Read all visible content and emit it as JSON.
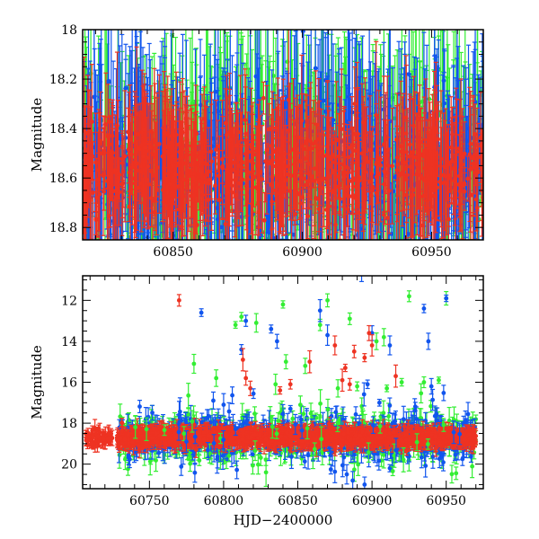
{
  "chart_data": [
    {
      "type": "scatter",
      "panel": "top",
      "xlabel": "",
      "ylabel": "Magnitude",
      "xlim": [
        60815,
        60970
      ],
      "ylim": [
        18.85,
        18.0
      ],
      "y_inverted": true,
      "xticks": [
        60850,
        60900,
        60950
      ],
      "yticks": [
        18,
        18.2,
        18.4,
        18.6,
        18.8
      ],
      "xtick_labels": [
        "60850",
        "60900",
        "60950"
      ],
      "ytick_labels": [
        "18",
        "18.2",
        "18.4",
        "18.6",
        "18.8"
      ],
      "series": [
        {
          "name": "green",
          "color": "#33ee33",
          "x_range": [
            60815,
            60970
          ],
          "y_center": 18.55,
          "y_spread": 0.3,
          "error_bars": true
        },
        {
          "name": "blue",
          "color": "#1155ee",
          "x_range": [
            60815,
            60970
          ],
          "y_center": 18.55,
          "y_spread": 0.3,
          "error_bars": true
        },
        {
          "name": "red",
          "color": "#ee3322",
          "x_range": [
            60815,
            60970
          ],
          "y_center": 18.55,
          "y_spread": 0.2,
          "error_bars": true
        }
      ]
    },
    {
      "type": "scatter",
      "panel": "bottom",
      "xlabel": "HJD−2400000",
      "ylabel": "Magnitude",
      "xlim": [
        60705,
        60975
      ],
      "ylim": [
        21.2,
        10.8
      ],
      "y_inverted": true,
      "xticks": [
        60750,
        60800,
        60850,
        60900,
        60950
      ],
      "yticks": [
        12,
        14,
        16,
        18,
        20
      ],
      "xtick_labels": [
        "60750",
        "60800",
        "60850",
        "60900",
        "60950"
      ],
      "ytick_labels": [
        "12",
        "14",
        "16",
        "18",
        "20"
      ],
      "series": [
        {
          "name": "red",
          "color": "#ee3322",
          "baseline": {
            "x_range": [
              60728,
              60970
            ],
            "y": 18.7,
            "spread": 0.4
          },
          "early": {
            "x_range": [
              60707,
              60725
            ],
            "y": 18.7,
            "spread": 0.35
          },
          "outliers": [
            [
              60770,
              12.0
            ],
            [
              60813,
              14.9
            ],
            [
              60815,
              15.8
            ],
            [
              60818,
              16.3
            ],
            [
              60838,
              16.4
            ],
            [
              60845,
              16.1
            ],
            [
              60858,
              15.0
            ],
            [
              60875,
              14.2
            ],
            [
              60880,
              15.9
            ],
            [
              60882,
              15.3
            ],
            [
              60885,
              16.1
            ],
            [
              60888,
              14.5
            ],
            [
              60895,
              14.8
            ],
            [
              60898,
              13.6
            ],
            [
              60900,
              14.2
            ],
            [
              60916,
              15.7
            ]
          ]
        },
        {
          "name": "green",
          "color": "#33ee33",
          "baseline": {
            "x_range": [
              60728,
              60970
            ],
            "y": 18.7,
            "spread": 1.1
          },
          "outliers": [
            [
              60780,
              15.1
            ],
            [
              60795,
              15.8
            ],
            [
              60808,
              13.2
            ],
            [
              60812,
              12.8
            ],
            [
              60822,
              13.1
            ],
            [
              60835,
              16.1
            ],
            [
              60840,
              12.2
            ],
            [
              60842,
              15.0
            ],
            [
              60855,
              15.2
            ],
            [
              60865,
              13.2
            ],
            [
              60870,
              12.0
            ],
            [
              60877,
              16.3
            ],
            [
              60885,
              12.9
            ],
            [
              60890,
              16.2
            ],
            [
              60903,
              14.0
            ],
            [
              60908,
              13.8
            ],
            [
              60910,
              16.3
            ],
            [
              60920,
              16.0
            ],
            [
              60925,
              11.8
            ],
            [
              60935,
              16.0
            ],
            [
              60945,
              15.9
            ],
            [
              60950,
              11.9
            ]
          ]
        },
        {
          "name": "blue",
          "color": "#1155ee",
          "baseline": {
            "x_range": [
              60728,
              60970
            ],
            "y": 18.7,
            "spread": 0.9
          },
          "outliers": [
            [
              60785,
              12.6
            ],
            [
              60800,
              17.1
            ],
            [
              60812,
              14.4
            ],
            [
              60815,
              13.0
            ],
            [
              60832,
              13.4
            ],
            [
              60836,
              14.0
            ],
            [
              60845,
              17.3
            ],
            [
              60856,
              17.8
            ],
            [
              60865,
              12.5
            ],
            [
              60870,
              13.7
            ],
            [
              60888,
              19.0
            ],
            [
              60893,
              10.7
            ],
            [
              60897,
              16.1
            ],
            [
              60900,
              13.6
            ],
            [
              60905,
              17.0
            ],
            [
              60912,
              14.2
            ],
            [
              60935,
              12.4
            ],
            [
              60938,
              14.0
            ],
            [
              60940,
              16.2
            ],
            [
              60950,
              11.9
            ],
            [
              60883,
              20.5
            ],
            [
              60887,
              20.8
            ],
            [
              60895,
              21.0
            ],
            [
              60912,
              20.2
            ],
            [
              60924,
              19.6
            ]
          ]
        }
      ]
    }
  ]
}
